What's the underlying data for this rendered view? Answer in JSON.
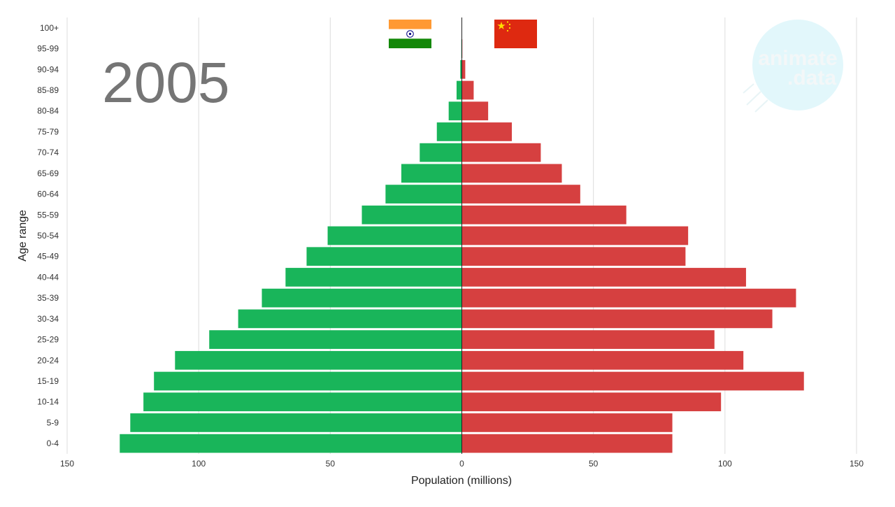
{
  "year_label": "2005",
  "watermark": {
    "line1": "animate",
    "line2": ".data"
  },
  "colors": {
    "left": "#19b55a",
    "right": "#d64040",
    "grid": "#dcdcdc",
    "center": "#222222",
    "watermark_bg": "#e2f7fb"
  },
  "flags": {
    "left": "india-flag",
    "right": "china-flag"
  },
  "chart_data": {
    "type": "bar",
    "orientation": "horizontal-pyramid",
    "title": "",
    "xlabel": "Population (millions)",
    "ylabel": "Age range",
    "xlim": [
      -150,
      150
    ],
    "x_ticks": [
      -150,
      -100,
      -50,
      0,
      50,
      100,
      150
    ],
    "x_tick_labels": [
      "150",
      "100",
      "50",
      "0",
      "50",
      "100",
      "150"
    ],
    "grid": true,
    "categories": [
      "0-4",
      "5-9",
      "10-14",
      "15-19",
      "20-24",
      "25-29",
      "30-34",
      "35-39",
      "40-44",
      "45-49",
      "50-54",
      "55-59",
      "60-64",
      "65-69",
      "70-74",
      "75-79",
      "80-84",
      "85-89",
      "90-94",
      "95-99",
      "100+"
    ],
    "series": [
      {
        "side": "left",
        "values": [
          130,
          126,
          121,
          117,
          109,
          96,
          85,
          76,
          67,
          59,
          51,
          38,
          29,
          23,
          16,
          9.5,
          5,
          2,
          0.6,
          0.2,
          0.05
        ]
      },
      {
        "side": "right",
        "values": [
          80,
          80,
          98.5,
          130,
          107,
          96,
          118,
          127,
          108,
          85,
          86,
          62.5,
          45,
          38,
          30,
          19,
          10,
          4.5,
          1.3,
          0.2,
          0.05
        ]
      }
    ]
  }
}
